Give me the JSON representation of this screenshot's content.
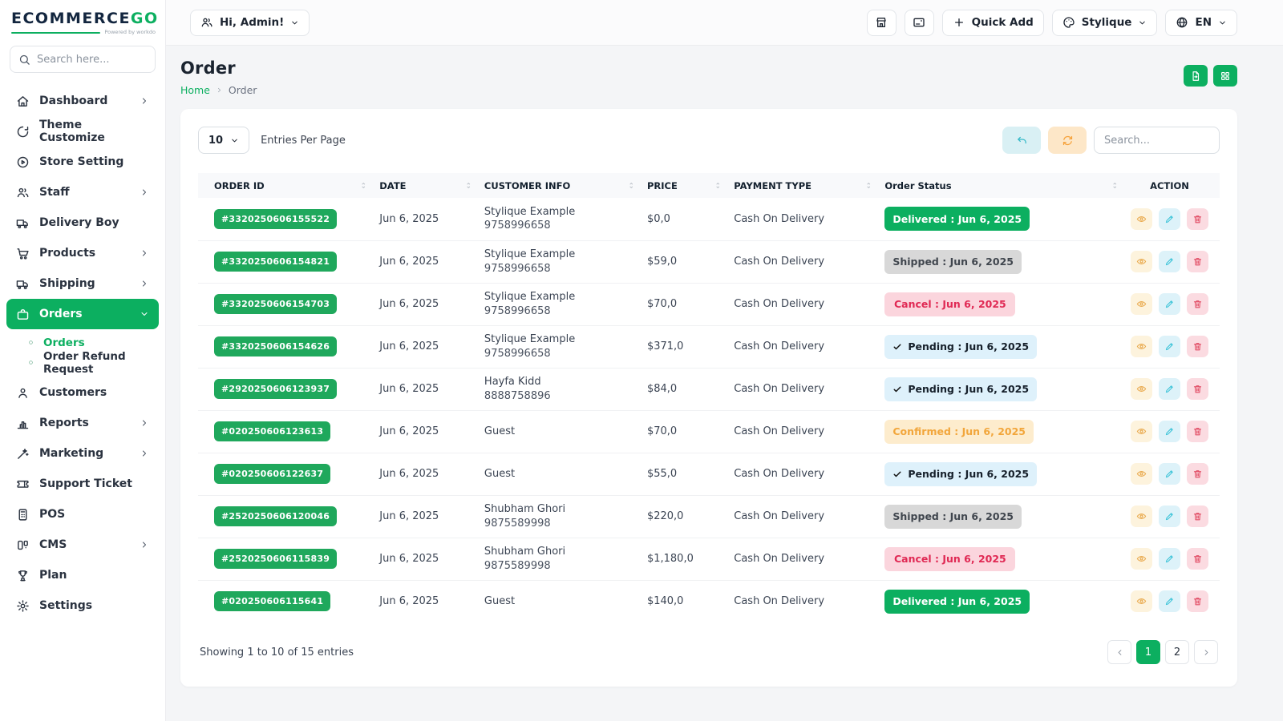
{
  "brand": {
    "name_primary": "ECOMMERCE",
    "name_secondary": "GO",
    "powered_by": "Powered by workdo"
  },
  "topbar": {
    "greeting": "Hi, Admin!",
    "actions": [
      {
        "name": "storefront-button",
        "icon": "storefront",
        "label": ""
      },
      {
        "name": "card-button",
        "icon": "card",
        "label": ""
      },
      {
        "name": "quick-add-button",
        "icon": "plus",
        "label": "Quick Add"
      },
      {
        "name": "theme-select-button",
        "icon": "palette",
        "label": "Stylique",
        "chevron": true
      },
      {
        "name": "language-select-button",
        "icon": "globe",
        "label": "EN",
        "chevron": true
      }
    ]
  },
  "sidebar": {
    "search_placeholder": "Search here...",
    "items": [
      {
        "label": "Dashboard",
        "icon": "home",
        "chevron": "right"
      },
      {
        "label": "Theme Customize",
        "icon": "theme"
      },
      {
        "label": "Store Setting",
        "icon": "store-gear"
      },
      {
        "label": "Staff",
        "icon": "users",
        "chevron": "right"
      },
      {
        "label": "Delivery Boy",
        "icon": "truck"
      },
      {
        "label": "Products",
        "icon": "cart",
        "chevron": "right"
      },
      {
        "label": "Shipping",
        "icon": "truck",
        "chevron": "right"
      },
      {
        "label": "Orders",
        "icon": "briefcase",
        "chevron": "down",
        "active": true,
        "children": [
          {
            "label": "Orders",
            "active": true
          },
          {
            "label": "Order Refund Request"
          }
        ]
      },
      {
        "label": "Customers",
        "icon": "user"
      },
      {
        "label": "Reports",
        "icon": "bar-chart",
        "chevron": "right"
      },
      {
        "label": "Marketing",
        "icon": "wand",
        "chevron": "right"
      },
      {
        "label": "Support Ticket",
        "icon": "ticket"
      },
      {
        "label": "POS",
        "icon": "pos"
      },
      {
        "label": "CMS",
        "icon": "cms",
        "chevron": "right"
      },
      {
        "label": "Plan",
        "icon": "trophy"
      },
      {
        "label": "Settings",
        "icon": "gear"
      }
    ]
  },
  "page": {
    "title": "Order",
    "breadcrumb_home": "Home",
    "breadcrumb_current": "Order"
  },
  "toolbar": {
    "entries_value": "10",
    "entries_label": "Entries Per Page",
    "search_placeholder": "Search..."
  },
  "table": {
    "headers": [
      {
        "label": "ORDER ID",
        "sortable": true
      },
      {
        "label": "DATE",
        "sortable": true
      },
      {
        "label": "CUSTOMER INFO",
        "sortable": true
      },
      {
        "label": "PRICE",
        "sortable": true
      },
      {
        "label": "PAYMENT TYPE",
        "sortable": true
      },
      {
        "label": "Order Status",
        "sortable": true
      },
      {
        "label": "ACTION",
        "sortable": false,
        "center": true
      }
    ],
    "rows": [
      {
        "order_id": "#3320250606155522",
        "date": "Jun 6, 2025",
        "customer_name": "Stylique Example",
        "customer_phone": "9758996658",
        "price": "$0,0",
        "payment": "Cash On Delivery",
        "status_label": "Delivered : Jun 6, 2025",
        "status_type": "delivered"
      },
      {
        "order_id": "#3320250606154821",
        "date": "Jun 6, 2025",
        "customer_name": "Stylique Example",
        "customer_phone": "9758996658",
        "price": "$59,0",
        "payment": "Cash On Delivery",
        "status_label": "Shipped : Jun 6, 2025",
        "status_type": "shipped"
      },
      {
        "order_id": "#3320250606154703",
        "date": "Jun 6, 2025",
        "customer_name": "Stylique Example",
        "customer_phone": "9758996658",
        "price": "$70,0",
        "payment": "Cash On Delivery",
        "status_label": "Cancel : Jun 6, 2025",
        "status_type": "cancel"
      },
      {
        "order_id": "#3320250606154626",
        "date": "Jun 6, 2025",
        "customer_name": "Stylique Example",
        "customer_phone": "9758996658",
        "price": "$371,0",
        "payment": "Cash On Delivery",
        "status_label": "Pending : Jun 6, 2025",
        "status_type": "pending"
      },
      {
        "order_id": "#2920250606123937",
        "date": "Jun 6, 2025",
        "customer_name": "Hayfa Kidd",
        "customer_phone": "8888758896",
        "price": "$84,0",
        "payment": "Cash On Delivery",
        "status_label": "Pending : Jun 6, 2025",
        "status_type": "pending"
      },
      {
        "order_id": "#020250606123613",
        "date": "Jun 6, 2025",
        "customer_name": "Guest",
        "customer_phone": "",
        "price": "$70,0",
        "payment": "Cash On Delivery",
        "status_label": "Confirmed : Jun 6, 2025",
        "status_type": "confirmed"
      },
      {
        "order_id": "#020250606122637",
        "date": "Jun 6, 2025",
        "customer_name": "Guest",
        "customer_phone": "",
        "price": "$55,0",
        "payment": "Cash On Delivery",
        "status_label": "Pending : Jun 6, 2025",
        "status_type": "pending"
      },
      {
        "order_id": "#2520250606120046",
        "date": "Jun 6, 2025",
        "customer_name": "Shubham Ghori",
        "customer_phone": "9875589998",
        "price": "$220,0",
        "payment": "Cash On Delivery",
        "status_label": "Shipped : Jun 6, 2025",
        "status_type": "shipped"
      },
      {
        "order_id": "#2520250606115839",
        "date": "Jun 6, 2025",
        "customer_name": "Shubham Ghori",
        "customer_phone": "9875589998",
        "price": "$1,180,0",
        "payment": "Cash On Delivery",
        "status_label": "Cancel : Jun 6, 2025",
        "status_type": "cancel"
      },
      {
        "order_id": "#020250606115641",
        "date": "Jun 6, 2025",
        "customer_name": "Guest",
        "customer_phone": "",
        "price": "$140,0",
        "payment": "Cash On Delivery",
        "status_label": "Delivered : Jun 6, 2025",
        "status_type": "delivered"
      }
    ]
  },
  "footer": {
    "showing_text": "Showing 1 to 10 of 15 entries",
    "pages": [
      "1",
      "2"
    ],
    "active_page": "1"
  },
  "colors": {
    "accent_green": "#0caf60",
    "order_id_badge": "#1fa85c",
    "status_styles": {
      "delivered": {
        "bg": "#0caf60",
        "text": "#ffffff",
        "check": false
      },
      "shipped": {
        "bg": "#d8d8d8",
        "text": "#40464e",
        "check": false
      },
      "cancel": {
        "bg": "#fbd5dd",
        "text": "#e02954",
        "check": false
      },
      "pending": {
        "bg": "#def1fb",
        "text": "#16202b",
        "check": true
      },
      "confirmed": {
        "bg": "#fdeccd",
        "text": "#f2a63b",
        "check": false
      }
    },
    "action_styles": {
      "view": {
        "bg": "#fdf3dd",
        "icon": "#e9a94c"
      },
      "edit": {
        "bg": "#ddf2f9",
        "icon": "#41c5d9"
      },
      "delete": {
        "bg": "#fbdbe1",
        "icon": "#e14b63"
      }
    },
    "undo_button": {
      "bg": "#d9f0f4",
      "icon": "#35b9c8"
    },
    "refresh_button": {
      "bg": "#fde7c8",
      "icon": "#f6a23b"
    }
  }
}
